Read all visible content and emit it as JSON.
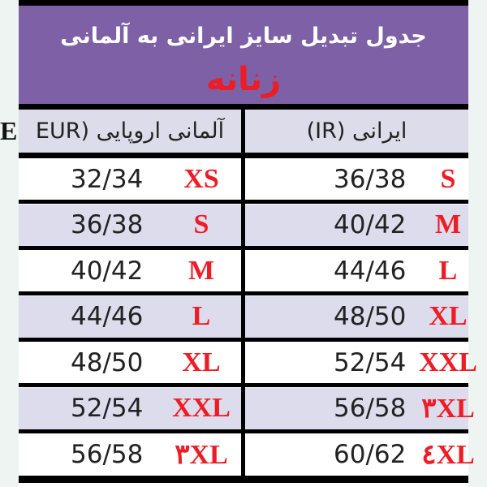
{
  "title": "جدول تبدیل سایز ایرانی به آلمانی",
  "subtitle": "زنانه",
  "headers": {
    "german": "آلمانی اروپایی (EUR",
    "iranian": "ایرانی (IR)"
  },
  "eur_overlay": "E",
  "colors": {
    "title_band": "#7d60a5",
    "size_label": "#ee1c25",
    "alt_row": "#dddcec"
  },
  "rows": [
    {
      "german_value": "32/34",
      "german_size": "XS",
      "iranian_value": "36/38",
      "iranian_size": "S"
    },
    {
      "german_value": "36/38",
      "german_size": "S",
      "iranian_value": "40/42",
      "iranian_size": "M"
    },
    {
      "german_value": "40/42",
      "german_size": "M",
      "iranian_value": "44/46",
      "iranian_size": "L"
    },
    {
      "german_value": "44/46",
      "german_size": "L",
      "iranian_value": "48/50",
      "iranian_size": "XL"
    },
    {
      "german_value": "48/50",
      "german_size": "XL",
      "iranian_value": "52/54",
      "iranian_size": "XXL"
    },
    {
      "german_value": "52/54",
      "german_size": "XXL",
      "iranian_value": "56/58",
      "iranian_size": "۳XL"
    },
    {
      "german_value": "56/58",
      "german_size": "۳XL",
      "iranian_value": "60/62",
      "iranian_size": "٤XL"
    }
  ]
}
